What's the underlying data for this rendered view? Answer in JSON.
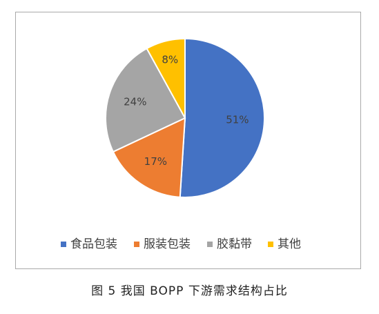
{
  "chart_data": {
    "type": "pie",
    "categories": [
      "食品包装",
      "服装包装",
      "胶黏带",
      "其他"
    ],
    "values": [
      51,
      17,
      24,
      8
    ],
    "labels": [
      "51%",
      "17%",
      "24%",
      "8%"
    ],
    "colors": [
      "#4472c4",
      "#ed7d31",
      "#a5a5a5",
      "#ffc000"
    ],
    "legend_position": "bottom",
    "start_angle": "12 o'clock, clockwise"
  },
  "caption": "图 5  我国 BOPP 下游需求结构占比"
}
